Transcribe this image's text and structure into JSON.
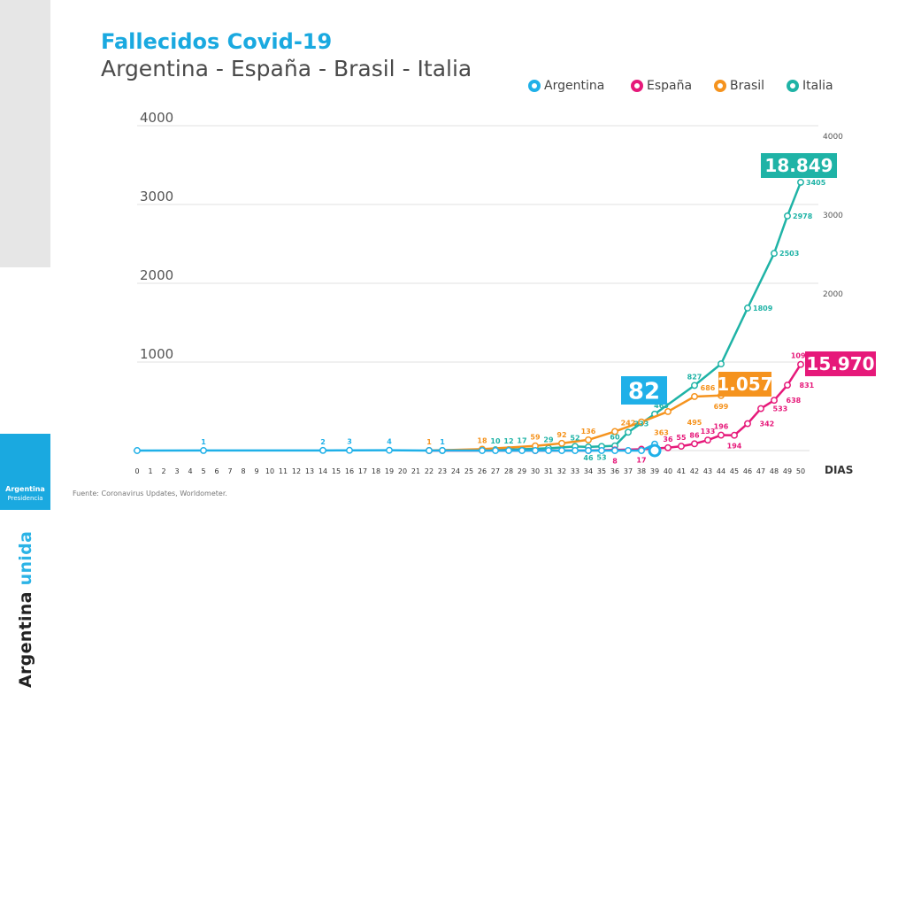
{
  "sidebar": {
    "vertical_text_part1": "Argentina",
    "vertical_text_part2": "unida",
    "logo_name": "Argentina",
    "logo_sub": "Presidencia"
  },
  "source": "Fuente: Coronavirus Updates, Worldometer.",
  "colors": {
    "argentina": "#1fb0e8",
    "espana": "#e6197a",
    "brasil": "#f5931e",
    "italia": "#1fb3a6"
  },
  "chart_data": {
    "type": "line",
    "title": "Fallecidos Covid-19",
    "subtitle": "Argentina - España - Brasil - Italia",
    "xlabel": "DIAS",
    "xlim": [
      0,
      50
    ],
    "ylim": [
      0,
      4000
    ],
    "left_ticks": [
      "1000",
      "2000",
      "3000",
      "4000"
    ],
    "right_ticks": [
      "1000",
      "2000",
      "3000",
      "4000"
    ],
    "x_ticks": [
      "0",
      "1",
      "2",
      "3",
      "4",
      "5",
      "6",
      "7",
      "8",
      "9",
      "10",
      "11",
      "12",
      "13",
      "14",
      "15",
      "16",
      "17",
      "18",
      "19",
      "20",
      "21",
      "22",
      "23",
      "24",
      "25",
      "26",
      "27",
      "28",
      "29",
      "30",
      "31",
      "32",
      "33",
      "34",
      "35",
      "36",
      "37",
      "38",
      "39",
      "40",
      "41",
      "42",
      "43",
      "44",
      "45",
      "46",
      "47",
      "48",
      "49",
      "50"
    ],
    "grid": true,
    "legend_position": "top-right",
    "series": [
      {
        "name": "Argentina",
        "color": "#1fb0e8",
        "points": [
          [
            0,
            0
          ],
          [
            5,
            1
          ],
          [
            14,
            2
          ],
          [
            16,
            3
          ],
          [
            19,
            4
          ],
          [
            22,
            0
          ],
          [
            23,
            1
          ],
          [
            26,
            0
          ],
          [
            27,
            0
          ],
          [
            28,
            0
          ],
          [
            29,
            0
          ],
          [
            30,
            0
          ],
          [
            31,
            0
          ],
          [
            32,
            0
          ],
          [
            33,
            0
          ],
          [
            34,
            0
          ],
          [
            35,
            0
          ],
          [
            36,
            0
          ],
          [
            37,
            0
          ],
          [
            38,
            0
          ],
          [
            39,
            82
          ]
        ],
        "total": "82"
      },
      {
        "name": "España",
        "color": "#e6197a",
        "points": [
          [
            22,
            0
          ],
          [
            30,
            0
          ],
          [
            34,
            0
          ],
          [
            36,
            8
          ],
          [
            38,
            17
          ],
          [
            40,
            36
          ],
          [
            41,
            55
          ],
          [
            42,
            86
          ],
          [
            43,
            133
          ],
          [
            44,
            196
          ],
          [
            45,
            194
          ],
          [
            46,
            342
          ],
          [
            47,
            533
          ],
          [
            48,
            638
          ],
          [
            49,
            831
          ],
          [
            50,
            1093
          ]
        ],
        "total": "15.970"
      },
      {
        "name": "Brasil",
        "color": "#f5931e",
        "points": [
          [
            22,
            1
          ],
          [
            26,
            18
          ],
          [
            30,
            59
          ],
          [
            32,
            92
          ],
          [
            34,
            136
          ],
          [
            36,
            242
          ],
          [
            38,
            363
          ],
          [
            40,
            495
          ],
          [
            42,
            686
          ],
          [
            44,
            699
          ],
          [
            45,
            801
          ]
        ],
        "total": "1.057"
      },
      {
        "name": "Italia",
        "color": "#1fb3a6",
        "points": [
          [
            23,
            1
          ],
          [
            27,
            10
          ],
          [
            28,
            12
          ],
          [
            29,
            17
          ],
          [
            31,
            29
          ],
          [
            33,
            52
          ],
          [
            34,
            46
          ],
          [
            35,
            53
          ],
          [
            36,
            60
          ],
          [
            37,
            233
          ],
          [
            39,
            463
          ],
          [
            42,
            827
          ],
          [
            44,
            1100
          ],
          [
            46,
            1809
          ],
          [
            48,
            2503
          ],
          [
            49,
            2978
          ],
          [
            50,
            3405
          ]
        ],
        "total": "18.849"
      }
    ],
    "point_labels": [
      {
        "series": "Argentina",
        "x": 5,
        "y": 1,
        "text": "1",
        "pos": "above"
      },
      {
        "series": "Argentina",
        "x": 14,
        "y": 2,
        "text": "2",
        "pos": "above"
      },
      {
        "series": "Argentina",
        "x": 16,
        "y": 3,
        "text": "3",
        "pos": "above"
      },
      {
        "series": "Argentina",
        "x": 19,
        "y": 4,
        "text": "4",
        "pos": "above"
      },
      {
        "series": "Brasil",
        "x": 22,
        "y": 1,
        "text": "1",
        "pos": "above"
      },
      {
        "series": "Argentina",
        "x": 23,
        "y": 1,
        "text": "1",
        "pos": "above"
      },
      {
        "series": "Brasil",
        "x": 26,
        "y": 18,
        "text": "18",
        "pos": "above"
      },
      {
        "series": "Italia",
        "x": 27,
        "y": 10,
        "text": "10",
        "pos": "above"
      },
      {
        "series": "Italia",
        "x": 28,
        "y": 12,
        "text": "12",
        "pos": "above"
      },
      {
        "series": "Italia",
        "x": 29,
        "y": 17,
        "text": "17",
        "pos": "above"
      },
      {
        "series": "Brasil",
        "x": 30,
        "y": 59,
        "text": "59",
        "pos": "above"
      },
      {
        "series": "Italia",
        "x": 31,
        "y": 29,
        "text": "29",
        "pos": "above"
      },
      {
        "series": "Brasil",
        "x": 32,
        "y": 92,
        "text": "92",
        "pos": "above"
      },
      {
        "series": "Italia",
        "x": 33,
        "y": 52,
        "text": "52",
        "pos": "above"
      },
      {
        "series": "Brasil",
        "x": 34,
        "y": 136,
        "text": "136",
        "pos": "above"
      },
      {
        "series": "Italia",
        "x": 34,
        "y": 46,
        "text": "46",
        "pos": "below"
      },
      {
        "series": "Italia",
        "x": 35,
        "y": 53,
        "text": "53",
        "pos": "below"
      },
      {
        "series": "Italia",
        "x": 36,
        "y": 60,
        "text": "60",
        "pos": "above"
      },
      {
        "series": "España",
        "x": 36,
        "y": 8,
        "text": "8",
        "pos": "below"
      },
      {
        "series": "Brasil",
        "x": 37,
        "y": 242,
        "text": "242",
        "pos": "above"
      },
      {
        "series": "Italia",
        "x": 38,
        "y": 233,
        "text": "233",
        "pos": "above"
      },
      {
        "series": "España",
        "x": 38,
        "y": 17,
        "text": "17",
        "pos": "below"
      },
      {
        "series": "Brasil",
        "x": 39.5,
        "y": 363,
        "text": "363",
        "pos": "below"
      },
      {
        "series": "Italia",
        "x": 39.5,
        "y": 463,
        "text": "463",
        "pos": "above"
      },
      {
        "series": "España",
        "x": 40,
        "y": 36,
        "text": "36",
        "pos": "above"
      },
      {
        "series": "España",
        "x": 41,
        "y": 55,
        "text": "55",
        "pos": "above"
      },
      {
        "series": "España",
        "x": 42,
        "y": 86,
        "text": "86",
        "pos": "above"
      },
      {
        "series": "Brasil",
        "x": 42,
        "y": 495,
        "text": "495",
        "pos": "below"
      },
      {
        "series": "Italia",
        "x": 42,
        "y": 827,
        "text": "827",
        "pos": "above"
      },
      {
        "series": "España",
        "x": 43,
        "y": 133,
        "text": "133",
        "pos": "above"
      },
      {
        "series": "Brasil",
        "x": 43,
        "y": 686,
        "text": "686",
        "pos": "above"
      },
      {
        "series": "España",
        "x": 44,
        "y": 196,
        "text": "196",
        "pos": "above"
      },
      {
        "series": "Brasil",
        "x": 44,
        "y": 699,
        "text": "699",
        "pos": "below"
      },
      {
        "series": "España",
        "x": 45,
        "y": 194,
        "text": "194",
        "pos": "below"
      },
      {
        "series": "España",
        "x": 46.5,
        "y": 342,
        "text": "342",
        "pos": "right"
      },
      {
        "series": "España",
        "x": 47.5,
        "y": 533,
        "text": "533",
        "pos": "right"
      },
      {
        "series": "España",
        "x": 48.5,
        "y": 638,
        "text": "638",
        "pos": "right"
      },
      {
        "series": "España",
        "x": 49.5,
        "y": 831,
        "text": "831",
        "pos": "right"
      },
      {
        "series": "España",
        "x": 50,
        "y": 1093,
        "text": "1093",
        "pos": "above"
      },
      {
        "series": "Italia",
        "x": 46,
        "y": 1809,
        "text": "1809",
        "pos": "right"
      },
      {
        "series": "Italia",
        "x": 48,
        "y": 2503,
        "text": "2503",
        "pos": "right"
      },
      {
        "series": "Italia",
        "x": 49,
        "y": 2978,
        "text": "2978",
        "pos": "right"
      },
      {
        "series": "Italia",
        "x": 50,
        "y": 3405,
        "text": "3405",
        "pos": "right"
      }
    ]
  }
}
